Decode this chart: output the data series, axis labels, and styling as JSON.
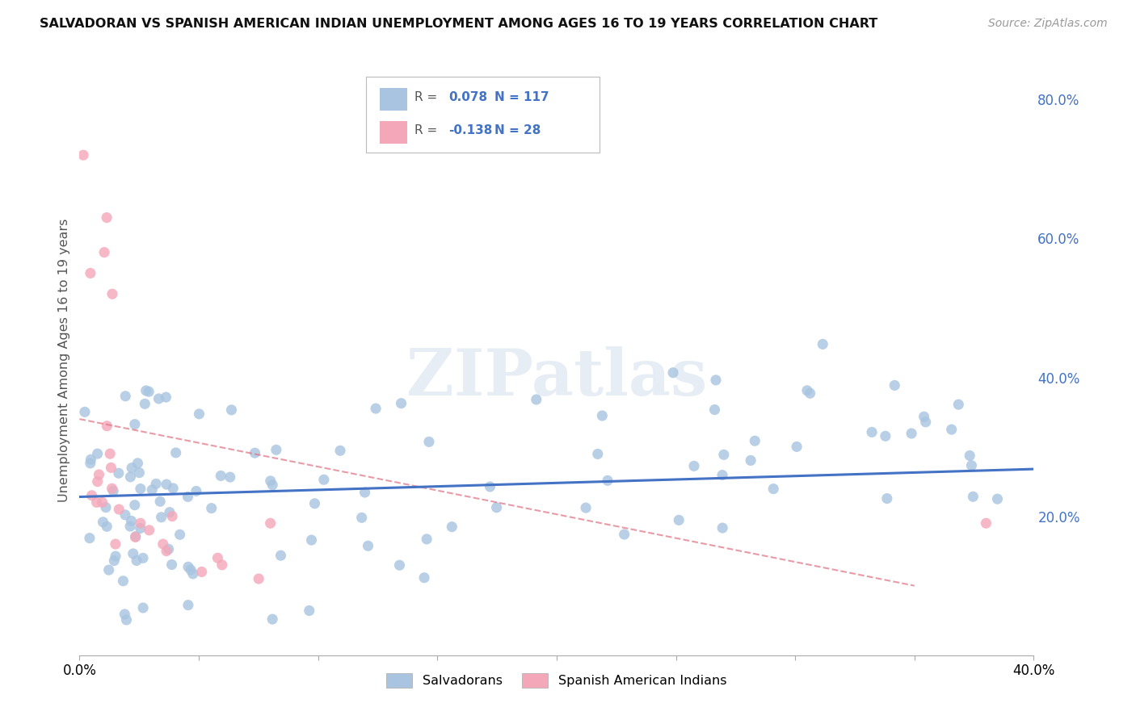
{
  "title": "SALVADORAN VS SPANISH AMERICAN INDIAN UNEMPLOYMENT AMONG AGES 16 TO 19 YEARS CORRELATION CHART",
  "source": "Source: ZipAtlas.com",
  "ylabel": "Unemployment Among Ages 16 to 19 years",
  "xlim": [
    0.0,
    0.4
  ],
  "ylim": [
    0.0,
    0.85
  ],
  "xticks": [
    0.0,
    0.05,
    0.1,
    0.15,
    0.2,
    0.25,
    0.3,
    0.35,
    0.4
  ],
  "xticklabels": [
    "0.0%",
    "",
    "",
    "",
    "",
    "",
    "",
    "",
    "40.0%"
  ],
  "yticks_right": [
    0.0,
    0.2,
    0.4,
    0.6,
    0.8
  ],
  "yticklabels_right": [
    "",
    "20.0%",
    "40.0%",
    "60.0%",
    "80.0%"
  ],
  "salvadoran_color": "#a8c4e0",
  "spanish_color": "#f4a7b9",
  "salvadoran_line_color": "#4472c4",
  "spanish_line_color": "#e07080",
  "R_salvadoran": 0.078,
  "N_salvadoran": 117,
  "R_spanish": -0.138,
  "N_spanish": 28,
  "watermark": "ZIPatlas",
  "legend_label1": "Salvadorans",
  "legend_label2": "Spanish American Indians",
  "sal_trend_x0": 0.0,
  "sal_trend_y0": 0.228,
  "sal_trend_x1": 0.4,
  "sal_trend_y1": 0.268,
  "sp_trend_x0": 0.0,
  "sp_trend_y0": 0.34,
  "sp_trend_x1": 0.35,
  "sp_trend_y1": 0.1
}
